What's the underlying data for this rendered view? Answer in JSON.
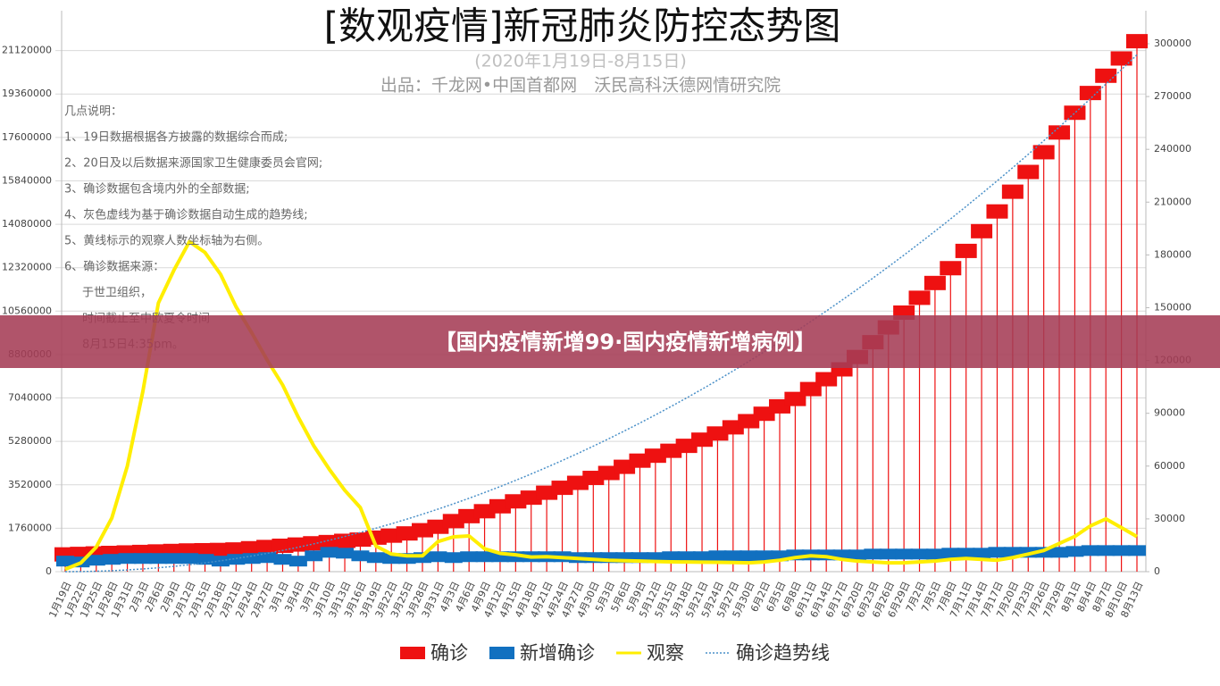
{
  "banner": "【国内疫情新增99·国内疫情新增病例】",
  "chart_data": {
    "type": "combo",
    "title": "[数观疫情]新冠肺炎防控态势图",
    "subtitle": "(2020年1月19日-8月15日)",
    "source": "出品：千龙网•中国首都网　沃民高科沃德网情研究院",
    "notes": [
      "几点说明：",
      "1、19日数据根据各方披露的数据综合而成;",
      "2、20日及以后数据来源国家卫生健康委员会官网;",
      "3、确诊数据包含境内外的全部数据;",
      "4、灰色虚线为基于确诊数据自动生成的趋势线;",
      "5、黄线标示的观察人数坐标轴为右侧。",
      "6、确诊数据来源：",
      "于世卫组织，",
      "时间截止至中欧夏令时间",
      "8月15日4:35pm。"
    ],
    "grid": true,
    "ylim": [
      0,
      22880000
    ],
    "yticks": [
      0,
      1760000,
      3520000,
      5280000,
      7040000,
      8800000,
      10560000,
      12320000,
      14080000,
      15840000,
      17600000,
      19360000,
      21120000
    ],
    "y2lim": [
      0,
      320800
    ],
    "y2ticks": [
      0,
      30000,
      60000,
      90000,
      120000,
      150000,
      180000,
      210000,
      240000,
      270000,
      300000
    ],
    "categories": [
      "1月19日",
      "1月22日",
      "1月25日",
      "1月28日",
      "1月31日",
      "2月3日",
      "2月6日",
      "2月9日",
      "2月12日",
      "2月15日",
      "2月18日",
      "2月21日",
      "2月24日",
      "2月27日",
      "3月1日",
      "3月4日",
      "3月7日",
      "3月10日",
      "3月13日",
      "3月16日",
      "3月19日",
      "3月22日",
      "3月25日",
      "3月28日",
      "3月31日",
      "4月3日",
      "4月6日",
      "4月9日",
      "4月12日",
      "4月15日",
      "4月18日",
      "4月21日",
      "4月24日",
      "4月27日",
      "4月30日",
      "5月3日",
      "5月6日",
      "5月9日",
      "5月12日",
      "5月15日",
      "5月18日",
      "5月21日",
      "5月24日",
      "5月27日",
      "5月30日",
      "6月2日",
      "6月5日",
      "6月8日",
      "6月11日",
      "6月14日",
      "6月17日",
      "6月20日",
      "6月23日",
      "6月26日",
      "6月29日",
      "7月2日",
      "7月5日",
      "7月8日",
      "7月11日",
      "7月14日",
      "7月17日",
      "7月20日",
      "7月23日",
      "7月26日",
      "7月29日",
      "8月1日",
      "8月4日",
      "8月7日",
      "8月10日",
      "8月13日"
    ],
    "series": [
      {
        "name": "确诊",
        "kind": "bar",
        "color": "#ee1111",
        "values": [
          700000,
          720000,
          740000,
          760000,
          780000,
          800000,
          820000,
          840000,
          860000,
          870000,
          880000,
          900000,
          950000,
          1000000,
          1050000,
          1100000,
          1150000,
          1200000,
          1250000,
          1300000,
          1380000,
          1460000,
          1550000,
          1680000,
          1820000,
          2050000,
          2250000,
          2450000,
          2650000,
          2850000,
          3000000,
          3200000,
          3400000,
          3600000,
          3800000,
          4000000,
          4250000,
          4500000,
          4700000,
          4900000,
          5100000,
          5350000,
          5600000,
          5850000,
          6100000,
          6400000,
          6700000,
          7000000,
          7400000,
          7800000,
          8200000,
          8700000,
          9300000,
          9900000,
          10500000,
          11100000,
          11700000,
          12300000,
          13000000,
          13800000,
          14600000,
          15400000,
          16200000,
          17000000,
          17800000,
          18600000,
          19400000,
          20100000,
          20800000,
          21500000
        ]
      },
      {
        "name": "新增确诊",
        "kind": "block",
        "axis": "y2",
        "color": "#1170c0",
        "values": [
          6000,
          5500,
          6500,
          7000,
          7500,
          7500,
          7500,
          7500,
          7500,
          7000,
          6000,
          7000,
          7500,
          8000,
          7000,
          6000,
          9000,
          11000,
          10500,
          9000,
          8000,
          7500,
          7500,
          8000,
          8500,
          8000,
          8500,
          8500,
          8500,
          8500,
          8500,
          8500,
          8500,
          8000,
          8000,
          8000,
          8000,
          8000,
          8000,
          8500,
          8500,
          8500,
          9000,
          9000,
          9000,
          9000,
          9000,
          9500,
          9500,
          9500,
          9500,
          9500,
          10000,
          10000,
          10000,
          10000,
          10000,
          10500,
          10500,
          10500,
          11000,
          11000,
          11000,
          11000,
          11000,
          11500,
          12000,
          12000,
          12000,
          12000
        ]
      },
      {
        "name": "观察",
        "kind": "line",
        "axis": "y2",
        "color": "#ffee00",
        "values": [
          1394,
          4928,
          13967,
          30453,
          59990,
          102427,
          152700,
          171329,
          187518,
          181386,
          169039,
          150539,
          135881,
          120302,
          106089,
          87902,
          71572,
          58233,
          46219,
          36432,
          14607,
          10000,
          9000,
          9000,
          17100,
          19800,
          20314,
          13000,
          10430,
          9600,
          8305,
          8480,
          8000,
          7500,
          7000,
          6500,
          6200,
          6000,
          5800,
          5600,
          5500,
          5400,
          5300,
          5200,
          5000,
          5500,
          6500,
          8000,
          9000,
          8500,
          7000,
          6000,
          5500,
          5000,
          5000,
          5500,
          6000,
          7000,
          7500,
          7000,
          6500,
          8000,
          10000,
          12000,
          16000,
          20000,
          26000,
          30000,
          25000,
          19933
        ]
      },
      {
        "name": "确诊趋势线",
        "kind": "trend",
        "color": "#4a90c8",
        "values": [
          0,
          4400,
          17600,
          39600,
          70400,
          110000,
          158400,
          215600,
          281600,
          356400,
          440000,
          532400,
          633600,
          743600,
          862400,
          990000,
          1126400,
          1271600,
          1425600,
          1588400,
          1760000,
          1940400,
          2129600,
          2327600,
          2534400,
          2750000,
          2974400,
          3207600,
          3449600,
          3700400,
          3960000,
          4228400,
          4505600,
          4791600,
          5086400,
          5390000,
          5702400,
          6023600,
          6353600,
          6692400,
          7040000,
          7396400,
          7761600,
          8135600,
          8518400,
          8910000,
          9310400,
          9719600,
          10137600,
          10564400,
          11000000,
          11444400,
          11897600,
          12359600,
          12830400,
          13310000,
          13798400,
          14295600,
          14801600,
          15316400,
          15840000,
          16372400,
          16913600,
          17463600,
          18022400,
          18590000,
          19166400,
          19761600,
          20345600,
          20948400
        ]
      }
    ]
  }
}
